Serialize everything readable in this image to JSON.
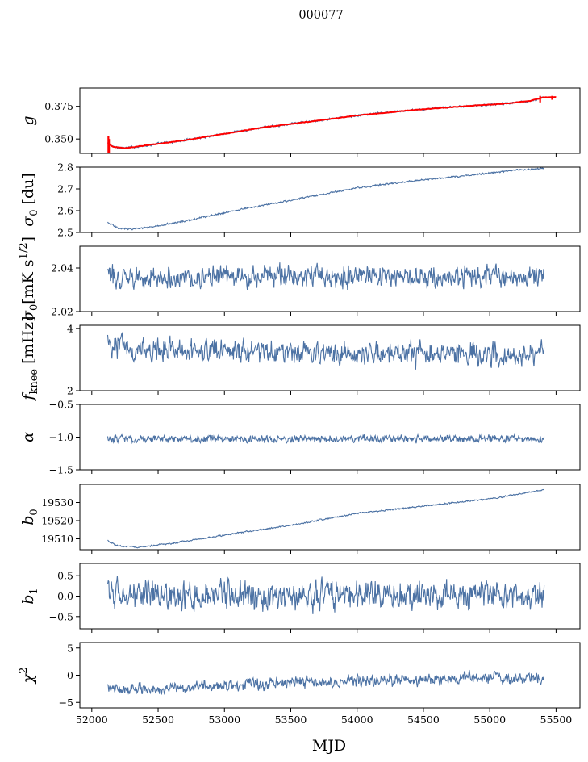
{
  "figure": {
    "suptitle": "000077",
    "xlabel": "MJD"
  },
  "colors": {
    "series": "#4c72a4",
    "model": "#ff0000"
  },
  "chart_data": [
    {
      "type": "line",
      "key": "g",
      "ylabel": "g",
      "ylabel_kind": "italic",
      "xlim": [
        51910,
        55680
      ],
      "ylim": [
        0.339,
        0.389
      ],
      "yticks": [
        "0.350",
        "0.375"
      ],
      "ytick_values": [
        0.35,
        0.375
      ],
      "x_range": [
        52120,
        55410
      ],
      "y_profile": [
        [
          52120,
          0.347
        ],
        [
          52160,
          0.344
        ],
        [
          52250,
          0.343
        ],
        [
          52400,
          0.345
        ],
        [
          52700,
          0.349
        ],
        [
          53000,
          0.354
        ],
        [
          53300,
          0.359
        ],
        [
          53700,
          0.364
        ],
        [
          54000,
          0.368
        ],
        [
          54400,
          0.372
        ],
        [
          54800,
          0.375
        ],
        [
          55100,
          0.377
        ],
        [
          55300,
          0.379
        ],
        [
          55410,
          0.382
        ]
      ],
      "noise": 0.0006,
      "series": [
        {
          "values": "estimated time series, ~800 samples"
        }
      ],
      "overlay": {
        "x_range": [
          52120,
          55500
        ],
        "y_profile": [
          [
            52120,
            0.347
          ],
          [
            52160,
            0.344
          ],
          [
            52250,
            0.343
          ],
          [
            52400,
            0.345
          ],
          [
            52700,
            0.349
          ],
          [
            53000,
            0.354
          ],
          [
            53300,
            0.359
          ],
          [
            53700,
            0.364
          ],
          [
            54000,
            0.368
          ],
          [
            54400,
            0.372
          ],
          [
            54800,
            0.375
          ],
          [
            55100,
            0.377
          ],
          [
            55300,
            0.379
          ],
          [
            55410,
            0.382
          ],
          [
            55500,
            0.382
          ]
        ]
      }
    },
    {
      "type": "line",
      "key": "sigma0_du",
      "ylabel_sym": "σ",
      "ylabel_sub": "0",
      "ylabel_unit": " [du]",
      "xlim": [
        51910,
        55680
      ],
      "ylim": [
        2.5,
        2.8
      ],
      "yticks": [
        "2.5",
        "2.6",
        "2.7",
        "2.8"
      ],
      "ytick_values": [
        2.5,
        2.6,
        2.7,
        2.8
      ],
      "x_range": [
        52120,
        55410
      ],
      "y_profile": [
        [
          52120,
          2.545
        ],
        [
          52200,
          2.52
        ],
        [
          52300,
          2.515
        ],
        [
          52500,
          2.53
        ],
        [
          52800,
          2.565
        ],
        [
          53200,
          2.615
        ],
        [
          53600,
          2.66
        ],
        [
          54000,
          2.705
        ],
        [
          54400,
          2.735
        ],
        [
          54800,
          2.76
        ],
        [
          55100,
          2.78
        ],
        [
          55410,
          2.795
        ]
      ],
      "noise": 0.003,
      "series": [
        {
          "values": "estimated time series, ~800 samples"
        }
      ]
    },
    {
      "type": "line",
      "key": "sigma0_mK",
      "ylabel_sym": "σ",
      "ylabel_sub": "0",
      "ylabel_unit": "[mK s",
      "ylabel_sup": "1/2",
      "ylabel_close": "]",
      "xlim": [
        51910,
        55680
      ],
      "ylim": [
        2.02,
        2.05
      ],
      "yticks": [
        "2.04",
        "2.02"
      ],
      "ytick_values": [
        2.04,
        2.02
      ],
      "x_range": [
        52120,
        55410
      ],
      "y_profile": [
        [
          52120,
          2.036
        ],
        [
          55410,
          2.036
        ]
      ],
      "noise": 0.0035,
      "series": [
        {
          "values": "estimated time series, ~800 samples"
        }
      ]
    },
    {
      "type": "line",
      "key": "fknee",
      "ylabel_sym": "f",
      "ylabel_sub": "knee",
      "ylabel_unit": " [mHz]",
      "xlim": [
        51910,
        55680
      ],
      "ylim": [
        2,
        4.1
      ],
      "yticks": [
        "2",
        "4"
      ],
      "ytick_values": [
        2,
        4
      ],
      "x_range": [
        52120,
        55410
      ],
      "y_profile": [
        [
          52120,
          3.5
        ],
        [
          52400,
          3.3
        ],
        [
          55410,
          3.15
        ]
      ],
      "noise": 0.28,
      "series": [
        {
          "values": "estimated time series, ~800 samples"
        }
      ]
    },
    {
      "type": "line",
      "key": "alpha",
      "ylabel": "α",
      "ylabel_kind": "italic",
      "xlim": [
        51910,
        55680
      ],
      "ylim": [
        -1.5,
        -0.5
      ],
      "yticks": [
        "−0.5",
        "−1.0",
        "−1.5"
      ],
      "ytick_values": [
        -0.5,
        -1.0,
        -1.5
      ],
      "x_range": [
        52120,
        55410
      ],
      "y_profile": [
        [
          52120,
          -1.03
        ],
        [
          55410,
          -1.02
        ]
      ],
      "noise": 0.04,
      "series": [
        {
          "values": "estimated time series, ~800 samples"
        }
      ]
    },
    {
      "type": "line",
      "key": "b0",
      "ylabel_sym": "b",
      "ylabel_sub": "0",
      "xlim": [
        51910,
        55680
      ],
      "ylim": [
        19504,
        19540
      ],
      "yticks": [
        "19510",
        "19520",
        "19530"
      ],
      "ytick_values": [
        19510,
        19520,
        19530
      ],
      "x_range": [
        52120,
        55410
      ],
      "y_profile": [
        [
          52120,
          19509
        ],
        [
          52200,
          19506
        ],
        [
          52350,
          19505.5
        ],
        [
          52600,
          19507.5
        ],
        [
          53000,
          19512
        ],
        [
          53500,
          19517.5
        ],
        [
          54000,
          19524
        ],
        [
          54500,
          19528
        ],
        [
          55000,
          19532
        ],
        [
          55410,
          19537
        ]
      ],
      "noise": 0.3,
      "series": [
        {
          "values": "estimated time series, ~800 samples"
        }
      ]
    },
    {
      "type": "line",
      "key": "b1",
      "ylabel_sym": "b",
      "ylabel_sub": "1",
      "xlim": [
        51910,
        55680
      ],
      "ylim": [
        -0.8,
        0.8
      ],
      "yticks": [
        "0.5",
        "0.0",
        "−0.5"
      ],
      "ytick_values": [
        0.5,
        0.0,
        -0.5
      ],
      "x_range": [
        52120,
        55410
      ],
      "y_profile": [
        [
          52120,
          0.02
        ],
        [
          55410,
          0.0
        ]
      ],
      "noise": 0.25,
      "series": [
        {
          "values": "estimated time series, ~800 samples"
        }
      ]
    },
    {
      "type": "line",
      "key": "chi2",
      "ylabel_sym": "χ",
      "ylabel_sup": "2",
      "xlim": [
        51910,
        55680
      ],
      "ylim": [
        -6,
        6
      ],
      "yticks": [
        "5",
        "0",
        "−5"
      ],
      "ytick_values": [
        5,
        0,
        -5
      ],
      "xticks": [
        "52000",
        "52500",
        "53000",
        "53500",
        "54000",
        "54500",
        "55000",
        "55500"
      ],
      "xtick_values": [
        52000,
        52500,
        53000,
        53500,
        54000,
        54500,
        55000,
        55500
      ],
      "x_range": [
        52120,
        55410
      ],
      "y_profile": [
        [
          52120,
          -2.5
        ],
        [
          52500,
          -2.6
        ],
        [
          53000,
          -1.8
        ],
        [
          53500,
          -1.4
        ],
        [
          54000,
          -1.1
        ],
        [
          54500,
          -0.8
        ],
        [
          55000,
          -0.6
        ],
        [
          55410,
          -0.4
        ]
      ],
      "noise": 0.75,
      "series": [
        {
          "values": "estimated time series, ~800 samples"
        }
      ]
    }
  ]
}
